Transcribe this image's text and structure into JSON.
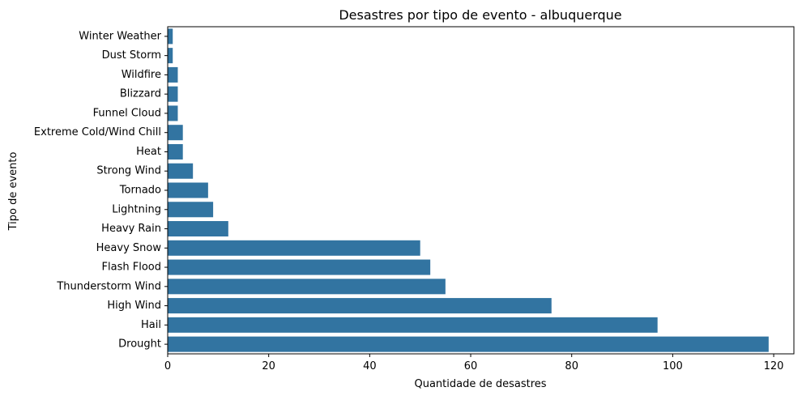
{
  "chart_data": {
    "type": "bar",
    "orientation": "horizontal",
    "title": "Desastres por tipo de evento - albuquerque",
    "xlabel": "Quantidade de desastres",
    "ylabel": "Tipo de evento",
    "xlim": [
      0,
      124
    ],
    "xticks": [
      0,
      20,
      40,
      60,
      80,
      100,
      120
    ],
    "grid": false,
    "bar_color": "#3274a1",
    "categories": [
      "Winter Weather",
      "Dust Storm",
      "Wildfire",
      "Blizzard",
      "Funnel Cloud",
      "Extreme Cold/Wind Chill",
      "Heat",
      "Strong Wind",
      "Tornado",
      "Lightning",
      "Heavy Rain",
      "Heavy Snow",
      "Flash Flood",
      "Thunderstorm Wind",
      "High Wind",
      "Hail",
      "Drought"
    ],
    "values": [
      1,
      1,
      2,
      2,
      2,
      3,
      3,
      5,
      8,
      9,
      12,
      50,
      52,
      55,
      76,
      97,
      119
    ]
  }
}
